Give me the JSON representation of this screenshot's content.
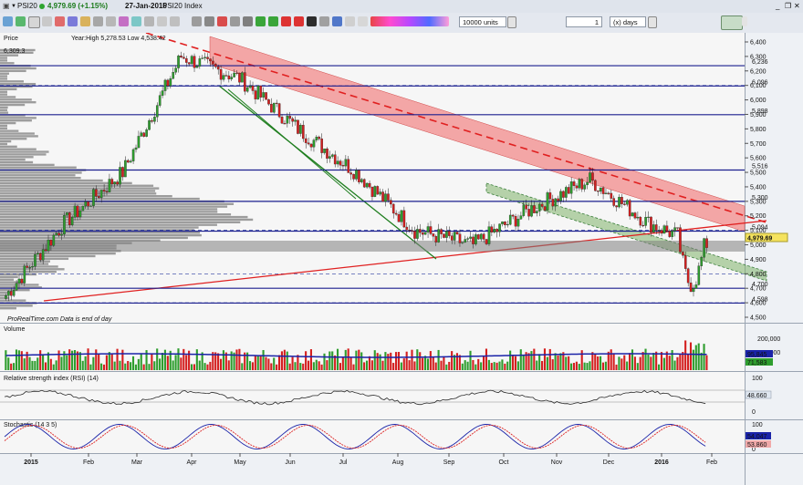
{
  "window": {
    "symbol": "PSI20",
    "price": "4,979.69 (+1.15%)",
    "date": "27-Jan-2016",
    "instrument": "PSI20 Index"
  },
  "toolbar": {
    "units_value": "10000 units",
    "period_value": "1",
    "period_unit": "(x) days"
  },
  "price_pane": {
    "label": "Price",
    "year_stats": "Year:High 5,278.53 Low 4,538.42",
    "watermark": "ProRealTime.com  Data is end of day",
    "last_price_tag": "4,979.69",
    "level_labels": [
      "6,236",
      "6,096",
      "5,898",
      "5,516",
      "5,300",
      "5,094",
      "4,700",
      "4,598"
    ],
    "top_left_level": "6,309.3",
    "price_ticks": [
      "6,400",
      "6,300",
      "6,200",
      "6,100",
      "6,000",
      "5,900",
      "5,800",
      "5,700",
      "5,600",
      "5,500",
      "5,400",
      "5,300",
      "5,200",
      "5,100",
      "5,000",
      "4,900",
      "4,800",
      "4,700",
      "4,600",
      "4,500"
    ]
  },
  "volume_pane": {
    "label": "Volume",
    "ticks": [
      "200,000",
      "100,000"
    ],
    "tag_ma": "95,845",
    "tag_vol": "71,583"
  },
  "rsi_pane": {
    "label": "Relative strength index (RSI) (14)",
    "ticks": [
      "100",
      "0"
    ],
    "value_tag": "48.660"
  },
  "stoch_pane": {
    "label": "Stochastic (14 3 5)",
    "ticks": [
      "100",
      "0"
    ],
    "tag_k": "54.047",
    "tag_d": "53.860"
  },
  "time_axis": [
    "2015",
    "Feb",
    "Mar",
    "Apr",
    "May",
    "Jun",
    "Jul",
    "Aug",
    "Sep",
    "Oct",
    "Nov",
    "Dec",
    "2016",
    "Feb"
  ],
  "chart_data": {
    "type": "candlestick",
    "title": "PSI20 Index",
    "ylim": [
      4500,
      6400
    ],
    "x_range": [
      "2015-01-02",
      "2016-01-27"
    ],
    "last_close": 4979.69,
    "support_resistance_levels": [
      6236,
      6096,
      5898,
      5516,
      5300,
      5094,
      4700,
      4598
    ],
    "year_high": 5278.53,
    "year_low": 4538.42,
    "key_closes": [
      {
        "date": "2015-01",
        "value": 4650
      },
      {
        "date": "2015-02",
        "value": 5150
      },
      {
        "date": "2015-03",
        "value": 5500
      },
      {
        "date": "2015-04",
        "value": 6300
      },
      {
        "date": "2015-05",
        "value": 6150
      },
      {
        "date": "2015-06",
        "value": 5800
      },
      {
        "date": "2015-07",
        "value": 5500
      },
      {
        "date": "2015-08",
        "value": 5100
      },
      {
        "date": "2015-09",
        "value": 5000
      },
      {
        "date": "2015-10",
        "value": 5250
      },
      {
        "date": "2015-11",
        "value": 5450
      },
      {
        "date": "2015-12",
        "value": 5150
      },
      {
        "date": "2016-01",
        "value": 4980
      }
    ],
    "colors": {
      "up": "#2e9d2e",
      "down": "#d41f1f",
      "resistance_band": "#f07b7b",
      "support_band": "#8fbf6f",
      "level_line": "#1b1f8e"
    }
  }
}
